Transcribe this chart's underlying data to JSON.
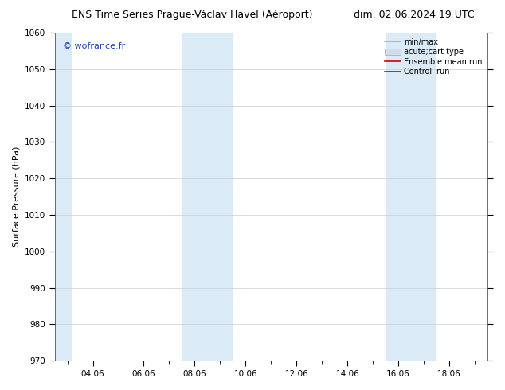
{
  "title_left": "ENS Time Series Prague-Václav Havel (Aéroport)",
  "title_right": "dim. 02.06.2024 19 UTC",
  "ylabel": "Surface Pressure (hPa)",
  "ylim": [
    970,
    1060
  ],
  "yticks": [
    970,
    980,
    990,
    1000,
    1010,
    1020,
    1030,
    1040,
    1050,
    1060
  ],
  "xtick_labels": [
    "04.06",
    "06.06",
    "08.06",
    "10.06",
    "12.06",
    "14.06",
    "16.06",
    "18.06"
  ],
  "xtick_positions": [
    2,
    4,
    6,
    8,
    10,
    12,
    14,
    16
  ],
  "xmin": 0.5,
  "xmax": 17.5,
  "shaded_bands": [
    {
      "xstart": 5.5,
      "xend": 7.5
    },
    {
      "xstart": 13.5,
      "xend": 15.5
    }
  ],
  "left_shaded": {
    "xstart": 0.5,
    "xend": 1.2
  },
  "shaded_color": "#daeaf7",
  "watermark": "© wofrance.fr",
  "watermark_color": "#1a3eb5",
  "legend_entries": [
    {
      "label": "min/max",
      "color": "#aaaaaa",
      "lw": 1.2,
      "style": "line"
    },
    {
      "label": "acute;cart type",
      "color": "#ccddee",
      "lw": 5,
      "style": "band"
    },
    {
      "label": "Ensemble mean run",
      "color": "#cc0000",
      "lw": 1.2,
      "style": "line"
    },
    {
      "label": "Controll run",
      "color": "#006600",
      "lw": 1.2,
      "style": "line"
    }
  ],
  "bg_color": "#ffffff",
  "grid_color": "#cccccc",
  "title_fontsize": 9,
  "label_fontsize": 8,
  "tick_fontsize": 7.5,
  "watermark_fontsize": 8,
  "legend_fontsize": 7
}
